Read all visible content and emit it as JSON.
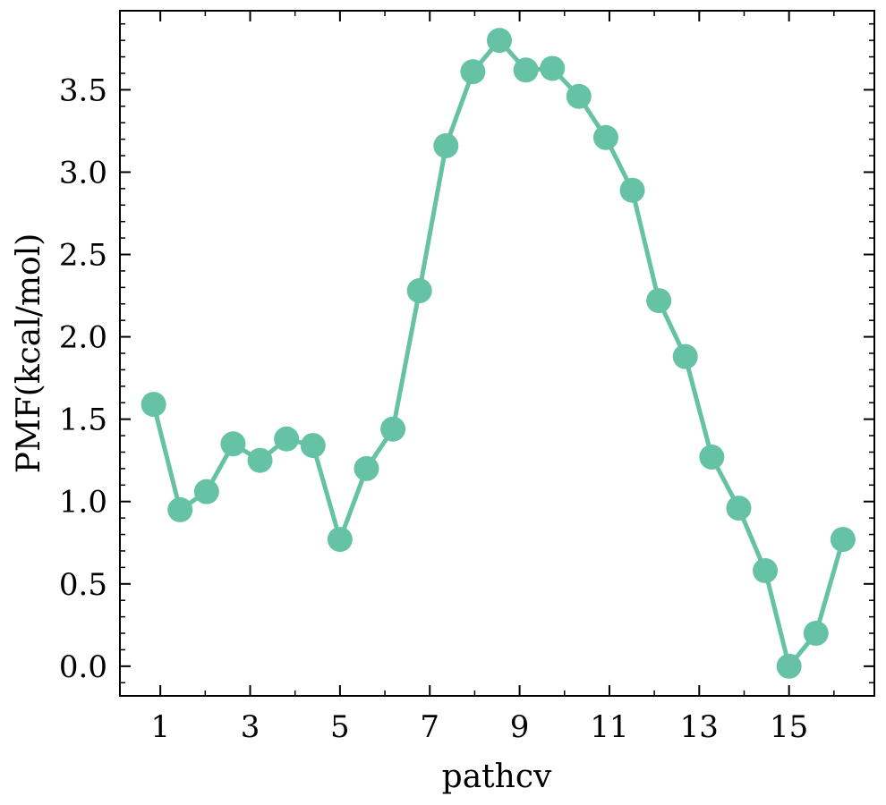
{
  "chart_data": {
    "type": "line",
    "xlabel": "pathcv",
    "ylabel": "PMF(kcal/mol)",
    "xlim": [
      0.1,
      16.9
    ],
    "ylim": [
      -0.18,
      3.98
    ],
    "x_ticks": [
      "1",
      "3",
      "5",
      "7",
      "9",
      "11",
      "13",
      "15"
    ],
    "y_ticks": [
      "0.0",
      "0.5",
      "1.0",
      "1.5",
      "2.0",
      "2.5",
      "3.0",
      "3.5"
    ],
    "grid": false,
    "colors": {
      "series": "#66c2a5"
    },
    "series": [
      {
        "x": [
          0.85,
          1.44,
          2.03,
          2.62,
          3.22,
          3.81,
          4.4,
          5.0,
          5.59,
          6.18,
          6.77,
          7.36,
          7.96,
          8.55,
          9.14,
          9.73,
          10.32,
          10.92,
          11.51,
          12.1,
          12.69,
          13.28,
          13.88,
          14.47,
          15.0,
          15.6,
          16.2
        ],
        "y": [
          1.59,
          0.95,
          1.06,
          1.35,
          1.25,
          1.38,
          1.34,
          0.77,
          1.2,
          1.44,
          2.28,
          3.16,
          3.61,
          3.8,
          3.62,
          3.63,
          3.46,
          3.21,
          2.89,
          2.22,
          1.88,
          1.27,
          0.96,
          0.58,
          0.0,
          0.2,
          0.77
        ]
      }
    ]
  }
}
